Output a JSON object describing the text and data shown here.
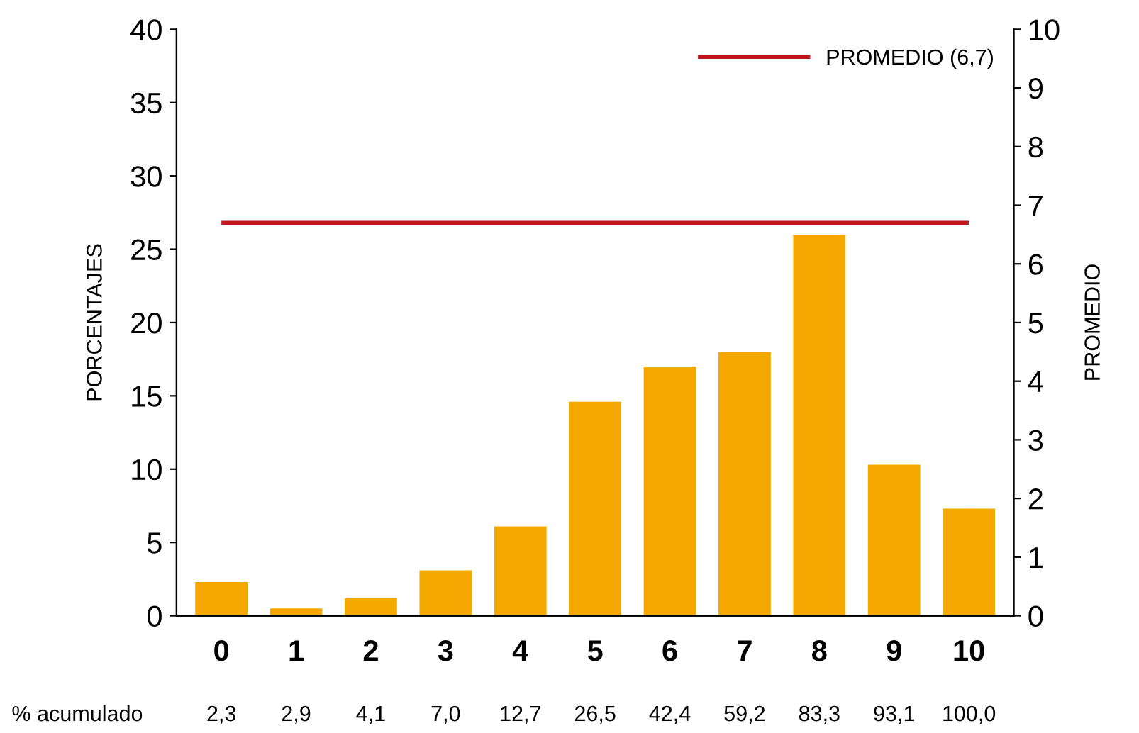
{
  "chart_data": {
    "type": "bar",
    "categories": [
      "0",
      "1",
      "2",
      "3",
      "4",
      "5",
      "6",
      "7",
      "8",
      "9",
      "10"
    ],
    "values": [
      2.3,
      0.5,
      1.2,
      3.1,
      6.1,
      14.6,
      17.0,
      18.0,
      26.0,
      10.3,
      7.3
    ],
    "color": "#f5a800",
    "ylabel": "PORCENTAJES",
    "y2label": "PROMEDIO",
    "ylim": [
      0,
      40
    ],
    "yticks": [
      0,
      5,
      10,
      15,
      20,
      25,
      30,
      35,
      40
    ],
    "y2lim": [
      0,
      10
    ],
    "y2ticks": [
      0,
      1,
      2,
      3,
      4,
      5,
      6,
      7,
      8,
      9,
      10
    ],
    "ref_lines": [
      {
        "axis": "y2",
        "value": 6.7,
        "label": "PROMEDIO (6,7)",
        "color": "#c0161b",
        "line_style": "solid"
      }
    ],
    "legend": "top right",
    "grid": false,
    "annotations": [
      "% acumulado",
      "2,3",
      "2,9",
      "4,1",
      "7,0",
      "12,7",
      "26,5",
      "42,4",
      "59,2",
      "83,3",
      "93,1",
      "100,0"
    ]
  }
}
